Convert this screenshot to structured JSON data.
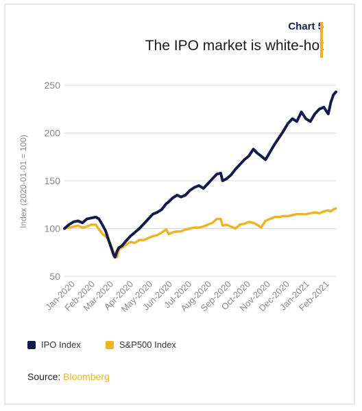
{
  "header": {
    "label": "Chart 5",
    "title": "The IPO market is white-hot"
  },
  "colors": {
    "ipo": "#141a4a",
    "sp500": "#f0b323",
    "accent": "#f0b323",
    "grid": "#d9d9d9",
    "axis_text": "#888888"
  },
  "source": {
    "prefix": "Source: ",
    "name": "Bloomberg"
  },
  "chart_data": {
    "type": "line",
    "ylabel": "Index (2020-01-01 = 100)",
    "xlabel": "",
    "ylim": [
      50,
      250
    ],
    "yticks": [
      50,
      100,
      150,
      200,
      250
    ],
    "xlim": [
      "2020-01-01",
      "2021-02-28"
    ],
    "xticks": [
      "Jan-2020",
      "Feb-2020",
      "Mar-2020",
      "Apr-2020",
      "May-2020",
      "Jun-2020",
      "Jul-2020",
      "Aug-2020",
      "Sep-2020",
      "Oct-2020",
      "Nov-2020",
      "Dec-2020",
      "Jan-2021",
      "Feb-2021"
    ],
    "xtick_dates": [
      "2020-01-01",
      "2020-02-01",
      "2020-03-01",
      "2020-04-01",
      "2020-05-01",
      "2020-06-01",
      "2020-07-01",
      "2020-08-01",
      "2020-09-01",
      "2020-10-01",
      "2020-11-01",
      "2020-12-01",
      "2021-01-01",
      "2021-02-01"
    ],
    "grid": "horizontal",
    "legend": "bottom-left",
    "series": [
      {
        "name": "IPO Index",
        "color": "#141a4a",
        "x": [
          "2020-01-01",
          "2020-01-08",
          "2020-01-15",
          "2020-01-22",
          "2020-01-29",
          "2020-02-05",
          "2020-02-12",
          "2020-02-19",
          "2020-02-24",
          "2020-03-01",
          "2020-03-05",
          "2020-03-10",
          "2020-03-14",
          "2020-03-18",
          "2020-03-20",
          "2020-03-23",
          "2020-03-26",
          "2020-03-31",
          "2020-04-06",
          "2020-04-13",
          "2020-04-20",
          "2020-04-27",
          "2020-05-04",
          "2020-05-11",
          "2020-05-18",
          "2020-05-25",
          "2020-06-01",
          "2020-06-08",
          "2020-06-12",
          "2020-06-18",
          "2020-06-25",
          "2020-07-01",
          "2020-07-08",
          "2020-07-15",
          "2020-07-22",
          "2020-07-29",
          "2020-08-05",
          "2020-08-12",
          "2020-08-19",
          "2020-08-26",
          "2020-09-01",
          "2020-09-04",
          "2020-09-10",
          "2020-09-17",
          "2020-09-24",
          "2020-10-01",
          "2020-10-08",
          "2020-10-15",
          "2020-10-22",
          "2020-10-28",
          "2020-11-03",
          "2020-11-10",
          "2020-11-17",
          "2020-11-24",
          "2020-12-01",
          "2020-12-08",
          "2020-12-15",
          "2020-12-22",
          "2020-12-29",
          "2021-01-05",
          "2021-01-12",
          "2021-01-19",
          "2021-01-26",
          "2021-02-02",
          "2021-02-09",
          "2021-02-16",
          "2021-02-20",
          "2021-02-24",
          "2021-02-28"
        ],
        "values": [
          100,
          104,
          107,
          108,
          106,
          110,
          111,
          112,
          110,
          103,
          98,
          88,
          80,
          72,
          70,
          76,
          80,
          82,
          87,
          92,
          96,
          100,
          105,
          110,
          115,
          117,
          120,
          126,
          128,
          132,
          135,
          133,
          135,
          140,
          143,
          145,
          142,
          147,
          152,
          157,
          158,
          150,
          152,
          156,
          162,
          167,
          172,
          176,
          183,
          179,
          176,
          172,
          180,
          188,
          195,
          202,
          210,
          215,
          212,
          222,
          215,
          212,
          220,
          225,
          227,
          220,
          232,
          240,
          243
        ]
      },
      {
        "name": "S&P500 Index",
        "color": "#f0b323",
        "x": [
          "2020-01-01",
          "2020-01-08",
          "2020-01-15",
          "2020-01-22",
          "2020-01-29",
          "2020-02-05",
          "2020-02-12",
          "2020-02-19",
          "2020-02-24",
          "2020-03-01",
          "2020-03-05",
          "2020-03-10",
          "2020-03-14",
          "2020-03-18",
          "2020-03-20",
          "2020-03-23",
          "2020-03-26",
          "2020-03-31",
          "2020-04-06",
          "2020-04-13",
          "2020-04-20",
          "2020-04-27",
          "2020-05-04",
          "2020-05-11",
          "2020-05-18",
          "2020-05-25",
          "2020-06-01",
          "2020-06-08",
          "2020-06-12",
          "2020-06-18",
          "2020-06-25",
          "2020-07-01",
          "2020-07-08",
          "2020-07-15",
          "2020-07-22",
          "2020-07-29",
          "2020-08-05",
          "2020-08-12",
          "2020-08-19",
          "2020-08-26",
          "2020-09-01",
          "2020-09-04",
          "2020-09-10",
          "2020-09-17",
          "2020-09-24",
          "2020-10-01",
          "2020-10-08",
          "2020-10-15",
          "2020-10-22",
          "2020-10-28",
          "2020-11-03",
          "2020-11-10",
          "2020-11-17",
          "2020-11-24",
          "2020-12-01",
          "2020-12-08",
          "2020-12-15",
          "2020-12-22",
          "2020-12-29",
          "2021-01-05",
          "2021-01-12",
          "2021-01-19",
          "2021-01-26",
          "2021-02-02",
          "2021-02-09",
          "2021-02-16",
          "2021-02-20",
          "2021-02-24",
          "2021-02-28"
        ],
        "values": [
          100,
          101,
          102,
          103,
          101,
          102,
          104,
          104,
          99,
          94,
          92,
          88,
          82,
          75,
          73,
          70,
          78,
          80,
          83,
          86,
          85,
          88,
          88,
          90,
          92,
          93,
          96,
          99,
          94,
          96,
          97,
          97,
          99,
          100,
          101,
          101,
          102,
          104,
          106,
          110,
          110,
          103,
          104,
          102,
          100,
          104,
          105,
          107,
          106,
          104,
          101,
          108,
          110,
          112,
          112,
          113,
          113,
          114,
          115,
          115,
          115,
          116,
          117,
          116,
          118,
          119,
          118,
          120,
          121
        ]
      }
    ]
  }
}
